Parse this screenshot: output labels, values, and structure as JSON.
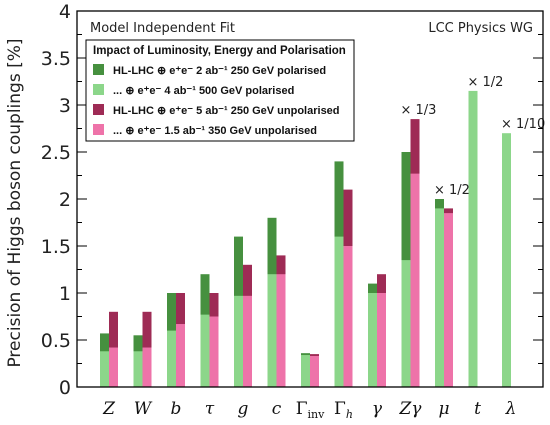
{
  "colors": {
    "green_dark": "#46903f",
    "green_light": "#8cd68a",
    "maroon": "#9e2b55",
    "pink": "#ee73a9"
  },
  "chart_data": {
    "type": "bar",
    "title": "Model Independent Fit",
    "source_label": "LCC Physics WG",
    "ylabel": "Precision of Higgs boson couplings [%]",
    "ylim": [
      0,
      4
    ],
    "yticks": [
      0,
      0.5,
      1,
      1.5,
      2,
      2.5,
      3,
      3.5,
      4
    ],
    "ytick_labels": [
      "0",
      "0.5",
      "1",
      "1.5",
      "2",
      "2.5",
      "3",
      "3.5",
      "4"
    ],
    "legend_title": "Impact of Luminosity, Energy and Polarisation",
    "legend_placement": "top-left inside",
    "categories": [
      "Z",
      "W",
      "b",
      "τ",
      "g",
      "c",
      "Γinv",
      "Γh",
      "γ",
      "Zγ",
      "μ",
      "t",
      "λ"
    ],
    "category_display": [
      {
        "main": "Z"
      },
      {
        "main": "W"
      },
      {
        "main": "b"
      },
      {
        "main": "τ"
      },
      {
        "main": "g"
      },
      {
        "main": "c"
      },
      {
        "main": "Γ",
        "sub": "inv"
      },
      {
        "main": "Γ",
        "sub": "h"
      },
      {
        "main": "γ"
      },
      {
        "main": "Zγ"
      },
      {
        "main": "μ"
      },
      {
        "main": "t"
      },
      {
        "main": "λ"
      }
    ],
    "series": [
      {
        "name": "HL-LHC ⊕ e⁺e⁻ 2 ab⁻¹ 250 GeV polarised",
        "group": "polarised",
        "layer": "back",
        "color": "#46903f",
        "values": [
          0.57,
          0.55,
          1.0,
          1.2,
          1.6,
          1.8,
          0.36,
          2.4,
          1.1,
          2.5,
          2.0,
          null,
          null
        ]
      },
      {
        "name": "... ⊕ e⁺e⁻ 4 ab⁻¹ 500 GeV polarised",
        "group": "polarised",
        "layer": "front",
        "color": "#8cd68a",
        "values": [
          0.38,
          0.38,
          0.6,
          0.77,
          0.97,
          1.2,
          0.34,
          1.6,
          1.0,
          1.35,
          1.9,
          3.15,
          2.7
        ]
      },
      {
        "name": "HL-LHC ⊕ e⁺e⁻ 5 ab⁻¹ 250 GeV unpolarised",
        "group": "unpolarised",
        "layer": "back",
        "color": "#9e2b55",
        "values": [
          0.8,
          0.8,
          1.0,
          1.0,
          1.3,
          1.4,
          0.35,
          2.1,
          1.2,
          2.85,
          1.9,
          null,
          null
        ]
      },
      {
        "name": "... ⊕ e⁺e⁻ 1.5 ab⁻¹ 350 GeV unpolarised",
        "group": "unpolarised",
        "layer": "front",
        "color": "#ee73a9",
        "values": [
          0.42,
          0.42,
          0.67,
          0.75,
          0.97,
          1.2,
          0.33,
          1.5,
          1.0,
          2.27,
          1.85,
          null,
          null
        ]
      }
    ],
    "annotations": [
      {
        "category": "Zγ",
        "text": "× 1/3"
      },
      {
        "category": "μ",
        "text": "× 1/2"
      },
      {
        "category": "t",
        "text": "× 1/2"
      },
      {
        "category": "λ",
        "text": "× 1/10"
      }
    ],
    "grid": false
  }
}
